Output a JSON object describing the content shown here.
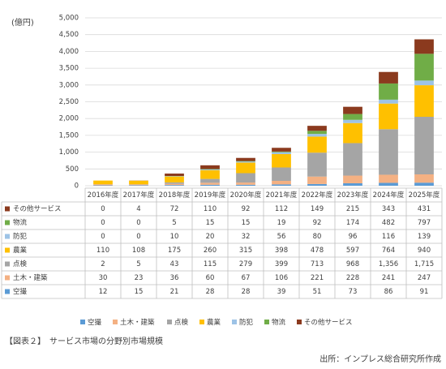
{
  "chart_data": {
    "type": "stacked_bar",
    "unit_label": "(億円)",
    "categories": [
      "2016年度",
      "2017年度",
      "2018年度",
      "2019年度",
      "2020年度",
      "2021年度",
      "2022年度",
      "2023年度",
      "2024年度",
      "2025年度"
    ],
    "series": [
      {
        "name": "空撮",
        "color": "#5b9bd5",
        "values": [
          12,
          15,
          21,
          28,
          28,
          39,
          51,
          73,
          86,
          91
        ]
      },
      {
        "name": "土木・建築",
        "color": "#f4b183",
        "values": [
          30,
          23,
          36,
          60,
          67,
          106,
          221,
          228,
          241,
          247
        ]
      },
      {
        "name": "点検",
        "color": "#a5a5a5",
        "values": [
          2,
          5,
          43,
          115,
          279,
          399,
          713,
          968,
          1356,
          1715
        ],
        "value_labels": [
          "2",
          "5",
          "43",
          "115",
          "279",
          "399",
          "713",
          "968",
          "1,356",
          "1,715"
        ]
      },
      {
        "name": "農業",
        "color": "#ffc000",
        "values": [
          110,
          108,
          175,
          260,
          315,
          398,
          478,
          597,
          764,
          940
        ]
      },
      {
        "name": "防犯",
        "color": "#9dc3e6",
        "values": [
          0,
          0,
          10,
          20,
          32,
          56,
          80,
          96,
          116,
          139
        ]
      },
      {
        "name": "物流",
        "color": "#70ad47",
        "values": [
          0,
          0,
          5,
          15,
          15,
          19,
          92,
          174,
          482,
          797
        ]
      },
      {
        "name": "その他サービス",
        "color": "#8b3a1e",
        "values": [
          0,
          4,
          72,
          110,
          92,
          112,
          149,
          215,
          343,
          431
        ]
      }
    ],
    "ylim": [
      0,
      5000
    ],
    "yticks": [
      0,
      500,
      {
        "value": 1000,
        "label": "1,000"
      },
      {
        "value": 1500,
        "label": "1,500"
      },
      {
        "value": 2000,
        "label": "2,000"
      },
      {
        "value": 2500,
        "label": "2,500"
      },
      {
        "value": 3000,
        "label": "3,000"
      },
      {
        "value": 3500,
        "label": "3,500"
      },
      {
        "value": 4000,
        "label": "4,000"
      },
      {
        "value": 4500,
        "label": "4,500"
      },
      {
        "value": 5000,
        "label": "5,000"
      }
    ],
    "grid": true,
    "legend": "bottom",
    "caption": "【図表２】　サービス市場の分野別市場規模",
    "source": "出所：インプレス総合研究所作成"
  }
}
